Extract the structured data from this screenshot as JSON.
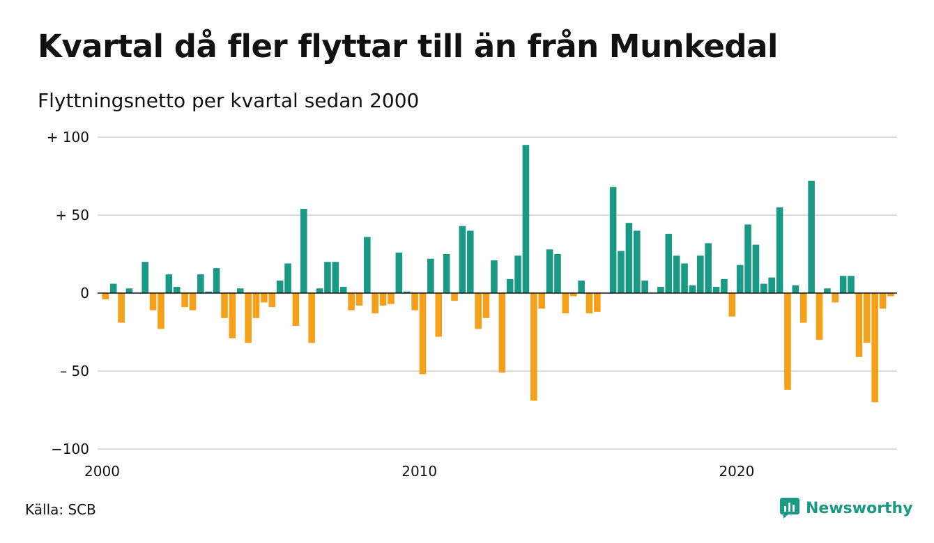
{
  "chart_data": {
    "type": "bar",
    "title": "Kvartal då fler flyttar till än från Munkedal",
    "subtitle": "Flyttningsnetto per kvartal sedan 2000",
    "source": "Källa: SCB",
    "brand": "Newsworthy",
    "ylim": [
      -100,
      100
    ],
    "y_ticks": [
      {
        "value": 100,
        "label": "+ 100"
      },
      {
        "value": 50,
        "label": "+  50"
      },
      {
        "value": 0,
        "label": "0"
      },
      {
        "value": -50,
        "label": "– 50"
      },
      {
        "value": -100,
        "label": "−100"
      }
    ],
    "x_ticks": [
      {
        "year": 2000,
        "label": "2000"
      },
      {
        "year": 2010,
        "label": "2010"
      },
      {
        "year": 2020,
        "label": "2020"
      }
    ],
    "start_year": 2000,
    "grid": true,
    "colors": {
      "positive": "#1a9985",
      "negative": "#f5a01a",
      "grid": "#dddddd",
      "axis": "#111111"
    },
    "values": [
      -4,
      6,
      -19,
      3,
      0,
      20,
      -11,
      -23,
      12,
      4,
      -9,
      -11,
      12,
      1,
      16,
      -16,
      -29,
      3,
      -32,
      -16,
      -6,
      -9,
      8,
      19,
      -21,
      54,
      -32,
      3,
      20,
      20,
      4,
      -11,
      -8,
      36,
      -13,
      -8,
      -7,
      26,
      1,
      -11,
      -52,
      22,
      -28,
      25,
      -5,
      43,
      40,
      -23,
      -16,
      21,
      -51,
      9,
      24,
      95,
      -69,
      -10,
      28,
      25,
      -13,
      -2,
      8,
      -13,
      -12,
      0,
      68,
      27,
      45,
      40,
      8,
      0,
      4,
      38,
      24,
      19,
      5,
      24,
      32,
      4,
      9,
      -15,
      18,
      44,
      31,
      6,
      10,
      55,
      -62,
      5,
      -19,
      72,
      -30,
      3,
      -6,
      11,
      11,
      -41,
      -32,
      -70,
      -10,
      -2
    ]
  }
}
